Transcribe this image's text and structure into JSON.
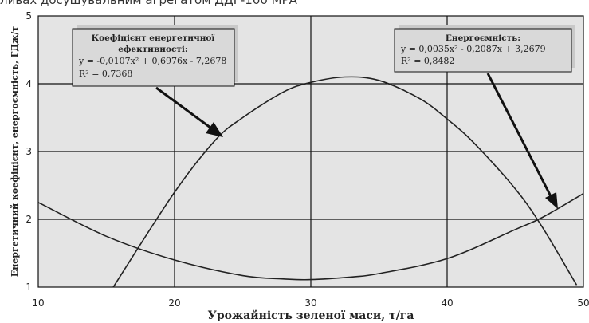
{
  "top_caption": "ливах досушувальним агрегатом ДДГ-100 МРА",
  "chart_data": {
    "type": "line",
    "title": "",
    "xlabel": "Урожайність зеленої маси, т/га",
    "ylabel": "Енергетичний коефіцієнт, енергоємність, ГДж/т",
    "xlim": [
      10,
      50
    ],
    "ylim": [
      1,
      5
    ],
    "x_ticks": [
      "10",
      "20",
      "30",
      "40",
      "50"
    ],
    "y_ticks": [
      "1",
      "2",
      "3",
      "4",
      "5"
    ],
    "grid": true,
    "series": [
      {
        "equation_box": {
          "title_lines": [
            "Коефіцієнт енергетичної",
            "ефективності:"
          ],
          "equation": "y = -0,0107x² + 0,6976x - 7,2678",
          "r2": "R² = 0,7368"
        },
        "x": [
          15.5,
          20,
          23,
          25,
          28,
          30,
          32.5,
          35,
          38,
          40,
          42,
          45,
          47,
          49.5
        ],
        "y": [
          1.0,
          2.4,
          3.17,
          3.5,
          3.88,
          4.02,
          4.1,
          4.05,
          3.78,
          3.48,
          3.12,
          2.45,
          1.88,
          1.03
        ]
      },
      {
        "equation_box": {
          "title_lines": [
            "Енергоємність:"
          ],
          "equation": "y = 0,0035x² - 0,2087x + 3,2679",
          "r2": "R² = 0,8482"
        },
        "x": [
          10,
          15,
          20,
          25,
          28,
          30,
          33,
          35,
          40,
          45,
          47,
          50
        ],
        "y": [
          2.25,
          1.75,
          1.4,
          1.17,
          1.12,
          1.11,
          1.15,
          1.2,
          1.42,
          1.85,
          2.03,
          2.38
        ]
      }
    ]
  }
}
